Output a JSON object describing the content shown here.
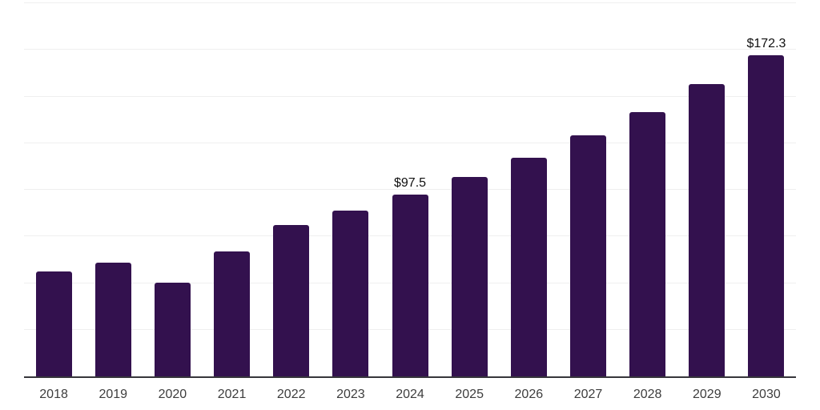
{
  "chart_data": {
    "type": "bar",
    "title": "",
    "xlabel": "",
    "ylabel": "",
    "categories": [
      "2018",
      "2019",
      "2020",
      "2021",
      "2022",
      "2023",
      "2024",
      "2025",
      "2026",
      "2027",
      "2028",
      "2029",
      "2030"
    ],
    "values": [
      56.2,
      60.9,
      50.4,
      66.9,
      81.1,
      88.8,
      97.5,
      106.7,
      117.0,
      129.1,
      141.8,
      156.8,
      172.3
    ],
    "point_labels": [
      "",
      "",
      "",
      "",
      "",
      "",
      "$97.5",
      "",
      "",
      "",
      "",
      "",
      "$172.3"
    ],
    "ylim": [
      0,
      200
    ],
    "grid_step": 25,
    "grid": true,
    "legend": false,
    "y_tick_labels_visible": false,
    "bar_color": "#33114e",
    "axis_line_color": "#37363b",
    "grid_line_color": "#efefef",
    "tick_label_color": "#3d3d3d",
    "data_label_color": "#101010",
    "background_color": "#ffffff"
  }
}
